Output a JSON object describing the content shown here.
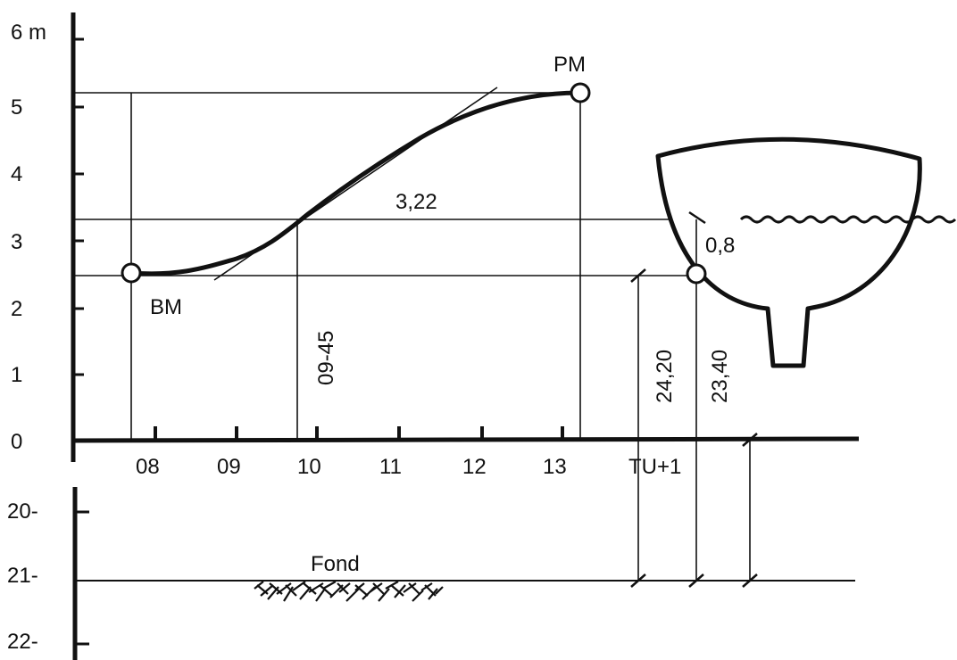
{
  "y_axis": {
    "ticks": [
      {
        "value": 0,
        "label": "0"
      },
      {
        "value": 1,
        "label": "1"
      },
      {
        "value": 2,
        "label": "2"
      },
      {
        "value": 3,
        "label": "3"
      },
      {
        "value": 4,
        "label": "4"
      },
      {
        "value": 5,
        "label": "5"
      },
      {
        "value": 6,
        "label": "6 m"
      }
    ]
  },
  "x_axis": {
    "ticks": [
      {
        "value": 8,
        "label": "08"
      },
      {
        "value": 9,
        "label": "09"
      },
      {
        "value": 10,
        "label": "10"
      },
      {
        "value": 11,
        "label": "11"
      },
      {
        "value": 12,
        "label": "12"
      },
      {
        "value": 13,
        "label": "13"
      }
    ],
    "end_label": "TU+1"
  },
  "depth_axis": {
    "ticks": [
      {
        "value": 20,
        "label": "20-"
      },
      {
        "value": 21,
        "label": "21-"
      },
      {
        "value": 22,
        "label": "22-"
      }
    ],
    "bottom_label": "Fond"
  },
  "tide": {
    "low_label": "BM",
    "high_label": "PM",
    "low_height_m": 2.5,
    "high_height_m": 5.15,
    "low_time_h": 7.75,
    "high_time_h": 13.2
  },
  "annotations": {
    "height_value": "3,22",
    "time_value": "09-45",
    "draft_value": "0,8",
    "depth_a": "24,20",
    "depth_b": "23,40"
  }
}
